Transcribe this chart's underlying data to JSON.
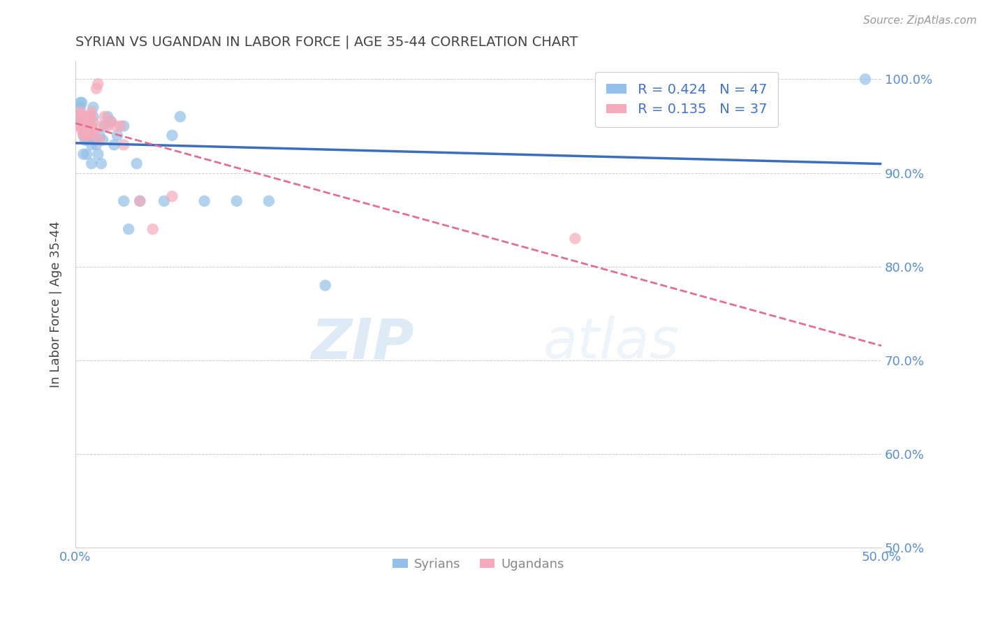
{
  "title": "SYRIAN VS UGANDAN IN LABOR FORCE | AGE 35-44 CORRELATION CHART",
  "source": "Source: ZipAtlas.com",
  "ylabel": "In Labor Force | Age 35-44",
  "xlim": [
    0.0,
    0.5
  ],
  "ylim": [
    0.5,
    1.02
  ],
  "ytick_values": [
    0.5,
    0.6,
    0.7,
    0.8,
    0.9,
    1.0
  ],
  "xtick_values": [
    0.0,
    0.5
  ],
  "xtick_labels": [
    "0.0%",
    "50.0%"
  ],
  "R_syrian": 0.424,
  "N_syrian": 47,
  "R_ugandan": 0.135,
  "N_ugandan": 37,
  "syrian_color": "#92C0E8",
  "ugandan_color": "#F4AABB",
  "trend_syrian_color": "#3A6EBF",
  "trend_ugandan_color": "#E07090",
  "title_color": "#444444",
  "axis_label_color": "#444444",
  "tick_label_color": "#5B8FC9",
  "source_color": "#999999",
  "R_text_color": "#4472C4",
  "background_color": "#FFFFFF",
  "syrian_points_x": [
    0.002,
    0.003,
    0.003,
    0.004,
    0.004,
    0.004,
    0.005,
    0.005,
    0.005,
    0.005,
    0.006,
    0.006,
    0.006,
    0.007,
    0.007,
    0.008,
    0.008,
    0.009,
    0.009,
    0.01,
    0.01,
    0.011,
    0.011,
    0.012,
    0.013,
    0.014,
    0.015,
    0.016,
    0.017,
    0.018,
    0.02,
    0.022,
    0.024,
    0.026,
    0.03,
    0.03,
    0.033,
    0.038,
    0.04,
    0.055,
    0.06,
    0.065,
    0.08,
    0.1,
    0.12,
    0.155,
    0.49
  ],
  "syrian_points_y": [
    0.96,
    0.97,
    0.975,
    0.95,
    0.955,
    0.975,
    0.95,
    0.92,
    0.94,
    0.955,
    0.935,
    0.95,
    0.96,
    0.95,
    0.92,
    0.935,
    0.95,
    0.94,
    0.96,
    0.91,
    0.93,
    0.96,
    0.97,
    0.935,
    0.93,
    0.92,
    0.94,
    0.91,
    0.935,
    0.95,
    0.96,
    0.955,
    0.93,
    0.94,
    0.95,
    0.87,
    0.84,
    0.91,
    0.87,
    0.87,
    0.94,
    0.96,
    0.87,
    0.87,
    0.87,
    0.78,
    1.0
  ],
  "ugandan_points_x": [
    0.002,
    0.003,
    0.003,
    0.004,
    0.004,
    0.005,
    0.005,
    0.005,
    0.006,
    0.006,
    0.006,
    0.007,
    0.007,
    0.007,
    0.008,
    0.008,
    0.009,
    0.009,
    0.01,
    0.01,
    0.01,
    0.011,
    0.012,
    0.013,
    0.014,
    0.015,
    0.016,
    0.018,
    0.02,
    0.022,
    0.025,
    0.028,
    0.03,
    0.04,
    0.048,
    0.06,
    0.31
  ],
  "ugandan_points_y": [
    0.96,
    0.95,
    0.965,
    0.945,
    0.96,
    0.96,
    0.95,
    0.94,
    0.95,
    0.96,
    0.945,
    0.94,
    0.96,
    0.955,
    0.94,
    0.95,
    0.95,
    0.96,
    0.965,
    0.95,
    0.945,
    0.955,
    0.94,
    0.99,
    0.995,
    0.935,
    0.95,
    0.96,
    0.95,
    0.955,
    0.95,
    0.95,
    0.93,
    0.87,
    0.84,
    0.875,
    0.83
  ]
}
